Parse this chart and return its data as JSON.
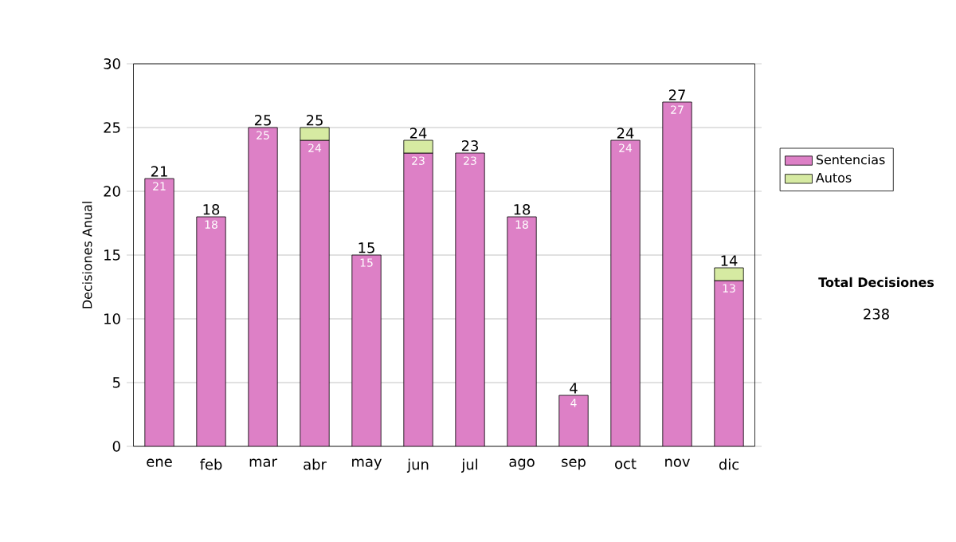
{
  "chart_data": {
    "type": "bar",
    "stacked": true,
    "ylabel": "Decisiones Anual",
    "categories": [
      "ene",
      "feb",
      "mar",
      "abr",
      "may",
      "jun",
      "jul",
      "ago",
      "sep",
      "oct",
      "nov",
      "dic"
    ],
    "series": [
      {
        "name": "Sentencias",
        "color": "#dd80c6",
        "values": [
          21,
          18,
          25,
          24,
          15,
          23,
          23,
          18,
          4,
          24,
          27,
          13
        ],
        "value_labels": [
          "21",
          "18",
          "25",
          "24",
          "15",
          "23",
          "23",
          "18",
          "4",
          "24",
          "27",
          "13"
        ]
      },
      {
        "name": "Autos",
        "color": "#d6eaa2",
        "values": [
          null,
          null,
          null,
          1,
          null,
          1,
          null,
          null,
          null,
          null,
          null,
          1
        ]
      }
    ],
    "totals": [
      "21",
      "18",
      "25",
      "25",
      "15",
      "24",
      "23",
      "18",
      "4",
      "24",
      "27",
      "14"
    ],
    "ylim": [
      0,
      30
    ],
    "yticks": [
      0,
      5,
      10,
      15,
      20,
      25,
      30
    ],
    "grid": "y",
    "legend": "right",
    "annotations": [
      "Total Decisiones",
      "238"
    ]
  }
}
